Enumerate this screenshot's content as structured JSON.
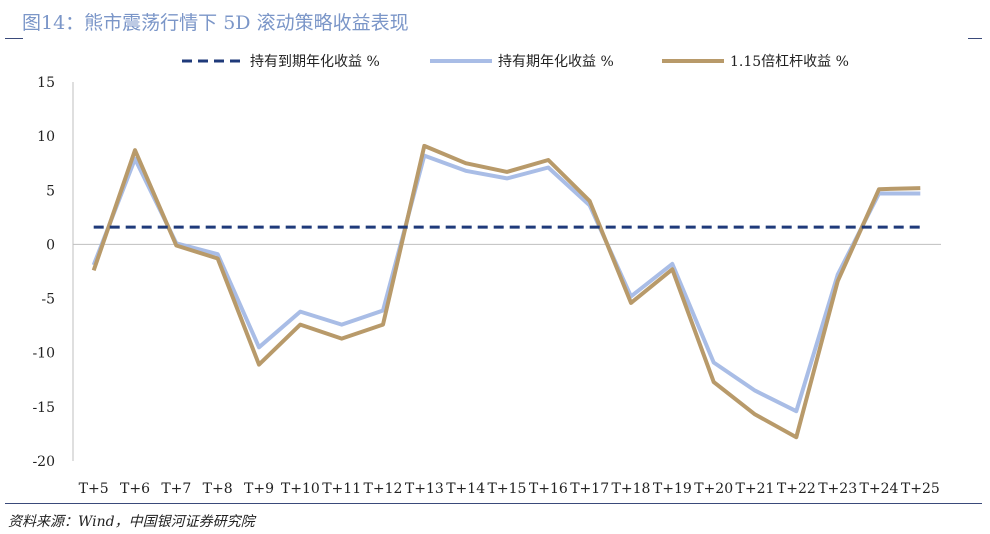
{
  "figure_title": "图14：熊市震荡行情下 5D 滚动策略收益表现",
  "source_note": "资料来源：Wind，中国银河证券研究院",
  "colors": {
    "hold_to_maturity": "#1f3a7a",
    "hold_period": "#a9bde6",
    "leverage": "#b89a6a",
    "axis": "#bfbfbf"
  },
  "chart_data": {
    "type": "line",
    "title": "",
    "xlabel": "",
    "ylabel": "",
    "ylim": [
      -20,
      15
    ],
    "yticks": [
      15,
      10,
      5,
      0,
      -5,
      -10,
      -15,
      -20
    ],
    "grid": false,
    "legend_position": "top",
    "categories": [
      "T+5",
      "T+6",
      "T+7",
      "T+8",
      "T+9",
      "T+10",
      "T+11",
      "T+12",
      "T+13",
      "T+14",
      "T+15",
      "T+16",
      "T+17",
      "T+18",
      "T+19",
      "T+20",
      "T+21",
      "T+22",
      "T+23",
      "T+24",
      "T+25"
    ],
    "series": [
      {
        "name": "持有到期年化收益 %",
        "style": "dashed",
        "color": "#1f3a7a",
        "values": [
          1.6,
          1.6,
          1.6,
          1.6,
          1.6,
          1.6,
          1.6,
          1.6,
          1.6,
          1.6,
          1.6,
          1.6,
          1.6,
          1.6,
          1.6,
          1.6,
          1.6,
          1.6,
          1.6,
          1.6,
          1.6
        ]
      },
      {
        "name": "持有期年化收益 %",
        "style": "solid",
        "color": "#a9bde6",
        "values": [
          -1.9,
          7.9,
          0.1,
          -0.9,
          -9.5,
          -6.2,
          -7.4,
          -6.1,
          8.2,
          6.8,
          6.1,
          7.1,
          3.6,
          -4.8,
          -1.8,
          -10.9,
          -13.5,
          -15.4,
          -2.8,
          4.7,
          4.7
        ]
      },
      {
        "name": "1.15倍杠杆收益 %",
        "style": "solid",
        "color": "#b89a6a",
        "values": [
          -2.4,
          8.7,
          -0.1,
          -1.3,
          -11.1,
          -7.4,
          -8.7,
          -7.4,
          9.1,
          7.5,
          6.7,
          7.8,
          4.0,
          -5.4,
          -2.3,
          -12.7,
          -15.7,
          -17.8,
          -3.4,
          5.1,
          5.2
        ]
      }
    ]
  }
}
